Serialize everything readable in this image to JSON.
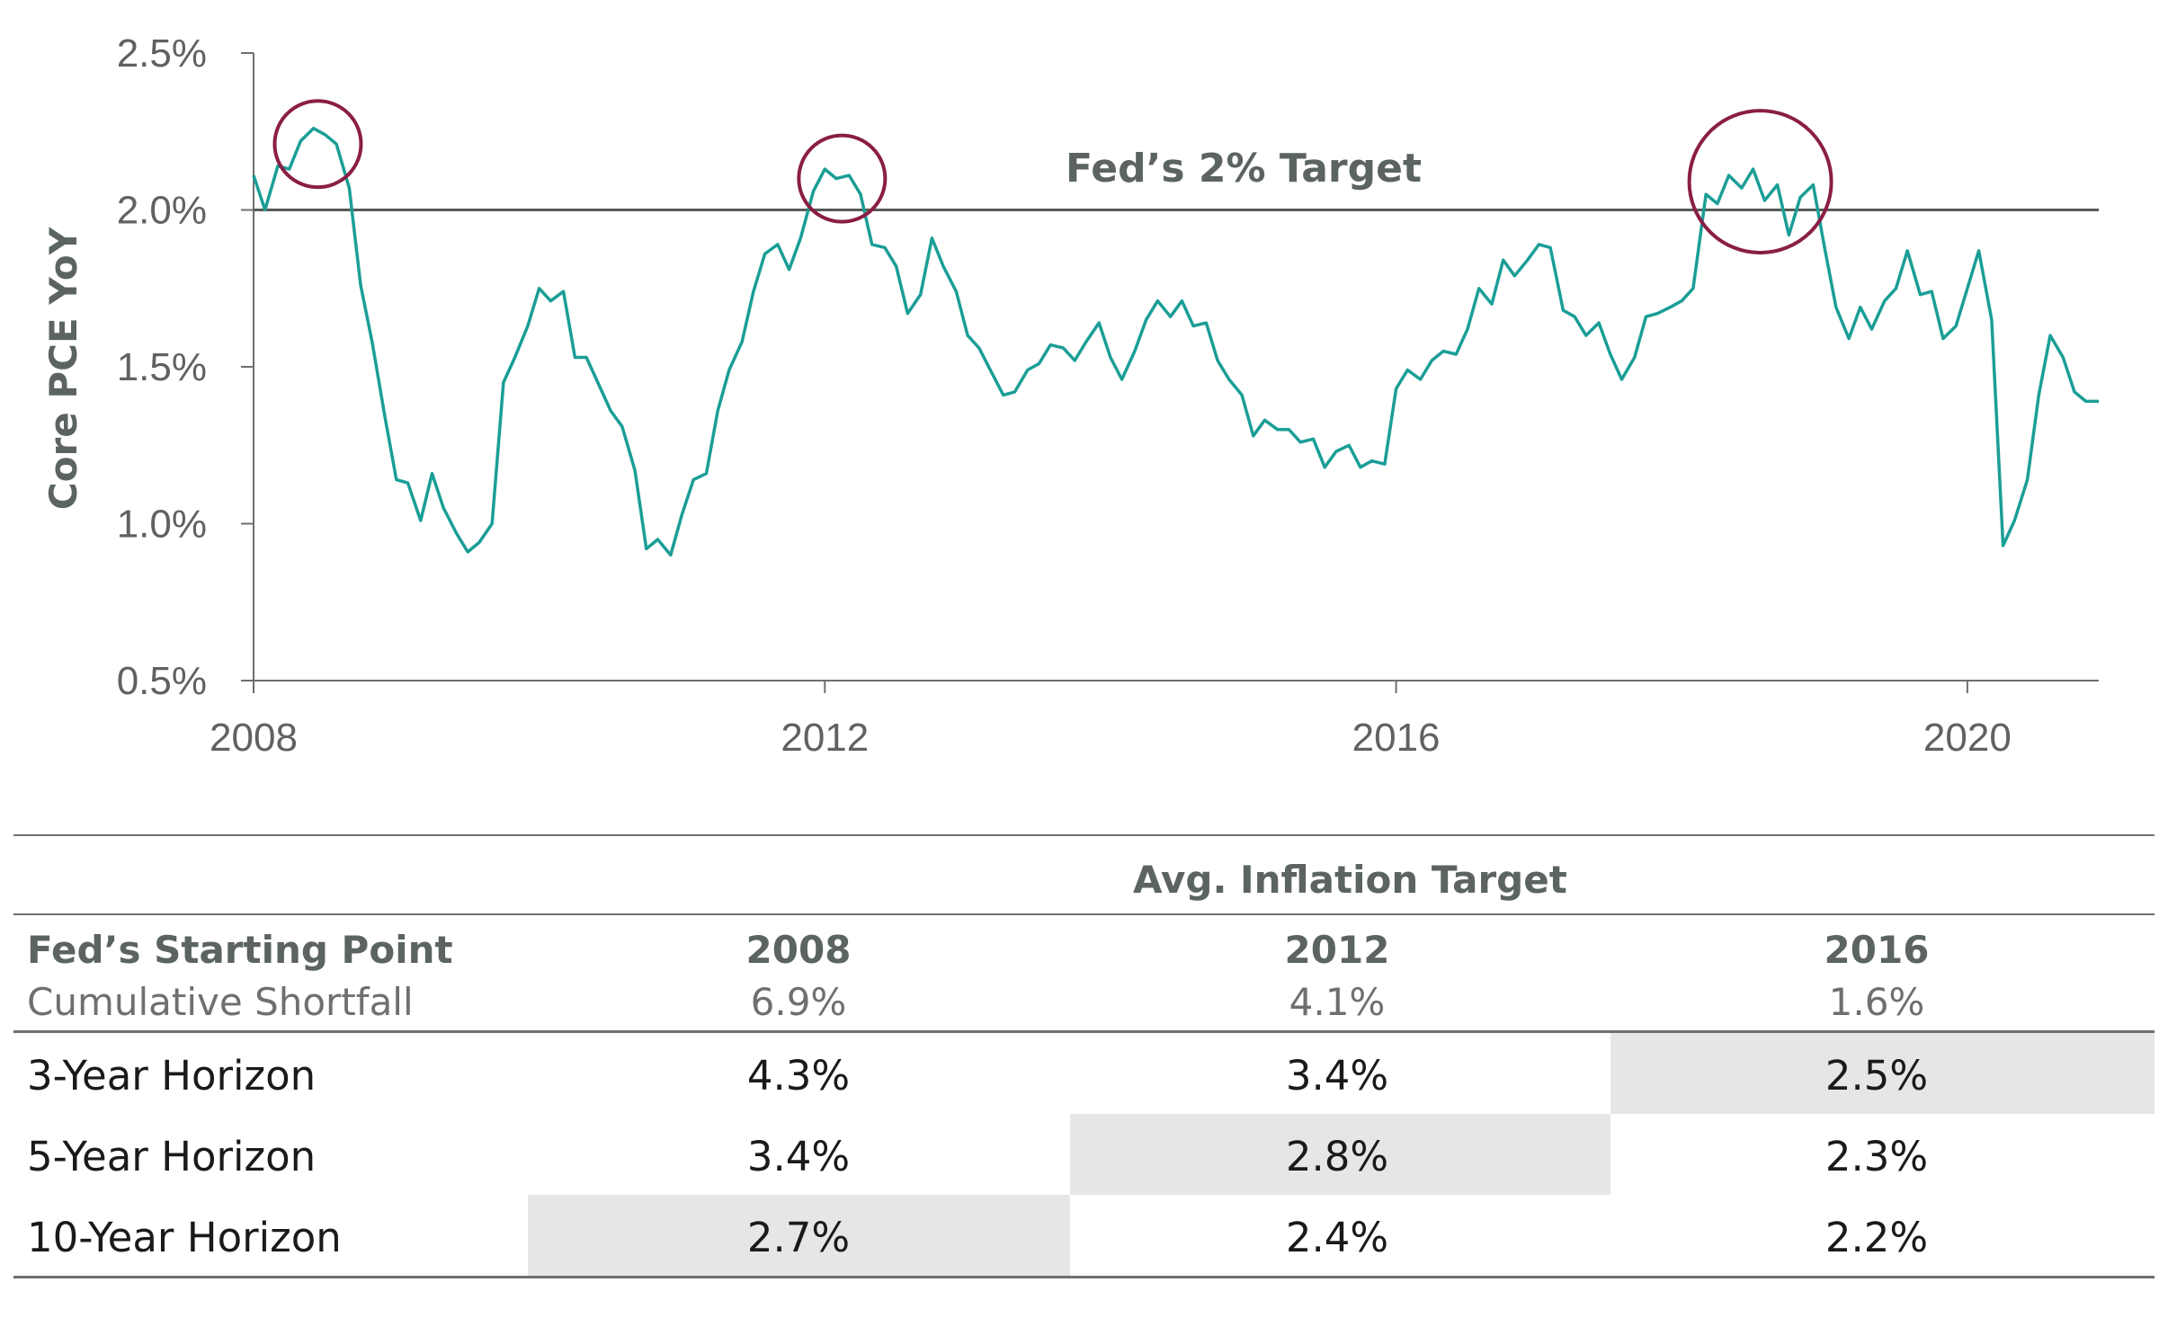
{
  "chart_data": {
    "type": "line",
    "ylabel": "Core PCE YoY",
    "ylim": [
      0.5,
      2.5
    ],
    "y_ticks": [
      "0.5%",
      "1.0%",
      "1.5%",
      "2.0%",
      "2.5%"
    ],
    "y_tick_values": [
      0.5,
      1.0,
      1.5,
      2.0,
      2.5
    ],
    "xlim": [
      2008.0,
      2020.92
    ],
    "x_ticks": [
      "2008",
      "2012",
      "2016",
      "2020"
    ],
    "x_tick_values": [
      2008,
      2012,
      2016,
      2020
    ],
    "reference_line": {
      "label": "Fed’s 2% Target",
      "value": 2.0
    },
    "highlight_circles": [
      {
        "x": 2008.45,
        "y": 2.21
      },
      {
        "x": 2012.12,
        "y": 2.1
      },
      {
        "x": 2018.55,
        "y": 2.09
      }
    ],
    "series": [
      {
        "color": "#1a9e96",
        "x": [
          2008.0,
          2008.08,
          2008.17,
          2008.25,
          2008.33,
          2008.42,
          2008.5,
          2008.58,
          2008.67,
          2008.75,
          2008.83,
          2008.92,
          2009.0,
          2009.08,
          2009.17,
          2009.25,
          2009.33,
          2009.42,
          2009.5,
          2009.58,
          2009.67,
          2009.75,
          2009.83,
          2009.92,
          2010.0,
          2010.08,
          2010.17,
          2010.25,
          2010.33,
          2010.42,
          2010.5,
          2010.58,
          2010.67,
          2010.75,
          2010.83,
          2010.92,
          2011.0,
          2011.08,
          2011.17,
          2011.25,
          2011.33,
          2011.42,
          2011.5,
          2011.58,
          2011.67,
          2011.75,
          2011.83,
          2011.92,
          2012.0,
          2012.08,
          2012.17,
          2012.25,
          2012.33,
          2012.42,
          2012.5,
          2012.58,
          2012.67,
          2012.75,
          2012.83,
          2012.92,
          2013.0,
          2013.08,
          2013.17,
          2013.25,
          2013.33,
          2013.42,
          2013.5,
          2013.58,
          2013.67,
          2013.75,
          2013.83,
          2013.92,
          2014.0,
          2014.08,
          2014.17,
          2014.25,
          2014.33,
          2014.42,
          2014.5,
          2014.58,
          2014.67,
          2014.75,
          2014.83,
          2014.92,
          2015.0,
          2015.08,
          2015.17,
          2015.25,
          2015.33,
          2015.42,
          2015.5,
          2015.58,
          2015.67,
          2015.75,
          2015.83,
          2015.92,
          2016.0,
          2016.08,
          2016.17,
          2016.25,
          2016.33,
          2016.42,
          2016.5,
          2016.58,
          2016.67,
          2016.75,
          2016.83,
          2016.92,
          2017.0,
          2017.08,
          2017.17,
          2017.25,
          2017.33,
          2017.42,
          2017.5,
          2017.58,
          2017.67,
          2017.75,
          2017.83,
          2017.92,
          2018.0,
          2018.08,
          2018.17,
          2018.25,
          2018.33,
          2018.42,
          2018.5,
          2018.58,
          2018.67,
          2018.75,
          2018.83,
          2018.92,
          2019.0,
          2019.08,
          2019.17,
          2019.25,
          2019.33,
          2019.42,
          2019.5,
          2019.58,
          2019.67,
          2019.75,
          2019.83,
          2019.92,
          2020.0,
          2020.08,
          2020.17,
          2020.25,
          2020.33,
          2020.42,
          2020.5,
          2020.58,
          2020.67,
          2020.75,
          2020.83,
          2020.92
        ],
        "y": [
          2.11,
          2.0,
          2.14,
          2.13,
          2.22,
          2.26,
          2.24,
          2.21,
          2.07,
          1.76,
          1.58,
          1.34,
          1.14,
          1.13,
          1.01,
          1.16,
          1.05,
          0.97,
          0.91,
          0.94,
          1.0,
          1.45,
          1.53,
          1.63,
          1.75,
          1.71,
          1.74,
          1.53,
          1.53,
          1.44,
          1.36,
          1.31,
          1.17,
          0.92,
          0.95,
          0.9,
          1.03,
          1.14,
          1.16,
          1.36,
          1.49,
          1.58,
          1.74,
          1.86,
          1.89,
          1.81,
          1.91,
          2.06,
          2.13,
          2.1,
          2.11,
          2.05,
          1.89,
          1.88,
          1.82,
          1.67,
          1.73,
          1.91,
          1.82,
          1.74,
          1.6,
          1.56,
          1.48,
          1.41,
          1.42,
          1.49,
          1.51,
          1.57,
          1.56,
          1.52,
          1.58,
          1.64,
          1.53,
          1.46,
          1.55,
          1.65,
          1.71,
          1.66,
          1.71,
          1.63,
          1.64,
          1.52,
          1.46,
          1.41,
          1.28,
          1.33,
          1.3,
          1.3,
          1.26,
          1.27,
          1.18,
          1.23,
          1.25,
          1.18,
          1.2,
          1.19,
          1.43,
          1.49,
          1.46,
          1.52,
          1.55,
          1.54,
          1.62,
          1.75,
          1.7,
          1.84,
          1.79,
          1.84,
          1.89,
          1.88,
          1.68,
          1.66,
          1.6,
          1.64,
          1.54,
          1.46,
          1.53,
          1.66,
          1.67,
          1.69,
          1.71,
          1.75,
          2.05,
          2.02,
          2.11,
          2.07,
          2.13,
          2.03,
          2.08,
          1.92,
          2.04,
          2.08,
          1.88,
          1.69,
          1.59,
          1.69,
          1.62,
          1.71,
          1.75,
          1.87,
          1.73,
          1.74,
          1.59,
          1.63,
          1.75,
          1.87,
          1.65,
          0.93,
          1.01,
          1.14,
          1.41,
          1.6,
          1.53,
          1.42,
          1.39,
          1.39
        ]
      }
    ]
  },
  "table": {
    "group_header": "Avg. Inflation Target",
    "row_header_label": "Fed’s Starting Point",
    "subheader_label": "Cumulative Shortfall",
    "columns": [
      "2008",
      "2012",
      "2016"
    ],
    "subheader_values": [
      "6.9%",
      "4.1%",
      "1.6%"
    ],
    "rows": [
      {
        "label": "3-Year Horizon",
        "values": [
          "4.3%",
          "3.4%",
          "2.5%"
        ]
      },
      {
        "label": "5-Year Horizon",
        "values": [
          "3.4%",
          "2.8%",
          "2.3%"
        ]
      },
      {
        "label": "10-Year Horizon",
        "values": [
          "2.7%",
          "2.4%",
          "2.2%"
        ]
      }
    ]
  }
}
